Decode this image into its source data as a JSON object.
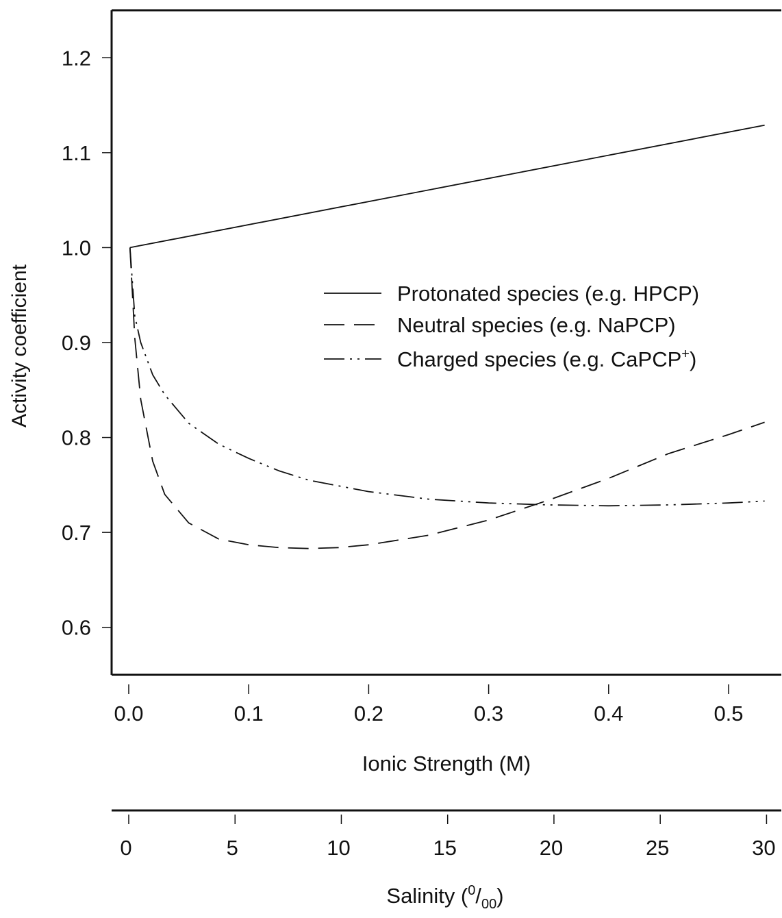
{
  "chart_data": {
    "type": "line",
    "title": "",
    "ylabel": "Activity coefficient",
    "xlabel": "Ionic Strength (M)",
    "ylim": [
      0.55,
      1.25
    ],
    "xlim": [
      -0.015,
      0.545
    ],
    "yticks": [
      0.6,
      0.7,
      0.8,
      0.9,
      1.0,
      1.1,
      1.2
    ],
    "ytick_labels": [
      "0.6",
      "0.7",
      "0.8",
      "0.9",
      "1.0",
      "1.1",
      "1.2"
    ],
    "xticks": [
      0.0,
      0.1,
      0.2,
      0.3,
      0.4,
      0.5
    ],
    "xtick_labels": [
      "0.0",
      "0.1",
      "0.2",
      "0.3",
      "0.4",
      "0.5"
    ],
    "secondary_axis": {
      "label_prefix": "Salinity (",
      "label_sup": "0",
      "label_slash": "/",
      "label_sub": "00",
      "label_suffix": ")",
      "ticks": [
        0,
        5,
        10,
        15,
        20,
        25,
        30
      ],
      "tick_labels": [
        "0",
        "5",
        "10",
        "15",
        "20",
        "25",
        "30"
      ],
      "salinity_per_ionic_strength": 56.43
    },
    "legend": {
      "placement": "center-right",
      "entries": [
        {
          "text": "Protonated species (e.g. HPCP)",
          "sup": "",
          "close": "",
          "style": "solid"
        },
        {
          "text": "Neutral species (e.g. NaPCP)",
          "sup": "",
          "close": "",
          "style": "dashed"
        },
        {
          "text": "Charged species (e.g. CaPCP",
          "sup": "+",
          "close": ")",
          "style": "dash-dot-dot"
        }
      ]
    },
    "grid": false,
    "series": [
      {
        "name": "Protonated species (e.g. HPCP)",
        "style": "solid",
        "x": [
          0.001,
          0.53
        ],
        "y": [
          1.0,
          1.129
        ]
      },
      {
        "name": "Neutral species (e.g. NaPCP)",
        "style": "dashed",
        "x": [
          0.001,
          0.005,
          0.01,
          0.02,
          0.03,
          0.05,
          0.075,
          0.1,
          0.125,
          0.15,
          0.175,
          0.2,
          0.25,
          0.3,
          0.35,
          0.4,
          0.45,
          0.5,
          0.53
        ],
        "y": [
          1.0,
          0.905,
          0.84,
          0.775,
          0.74,
          0.71,
          0.693,
          0.687,
          0.684,
          0.683,
          0.684,
          0.687,
          0.697,
          0.713,
          0.734,
          0.757,
          0.783,
          0.803,
          0.816
        ]
      },
      {
        "name": "Charged species (e.g. CaPCP+)",
        "style": "dash-dot-dot",
        "x": [
          0.001,
          0.005,
          0.01,
          0.02,
          0.03,
          0.05,
          0.075,
          0.1,
          0.125,
          0.15,
          0.2,
          0.25,
          0.3,
          0.35,
          0.4,
          0.45,
          0.5,
          0.53
        ],
        "y": [
          1.0,
          0.928,
          0.9,
          0.866,
          0.845,
          0.815,
          0.793,
          0.778,
          0.765,
          0.755,
          0.743,
          0.735,
          0.731,
          0.729,
          0.728,
          0.729,
          0.731,
          0.733
        ]
      }
    ]
  }
}
